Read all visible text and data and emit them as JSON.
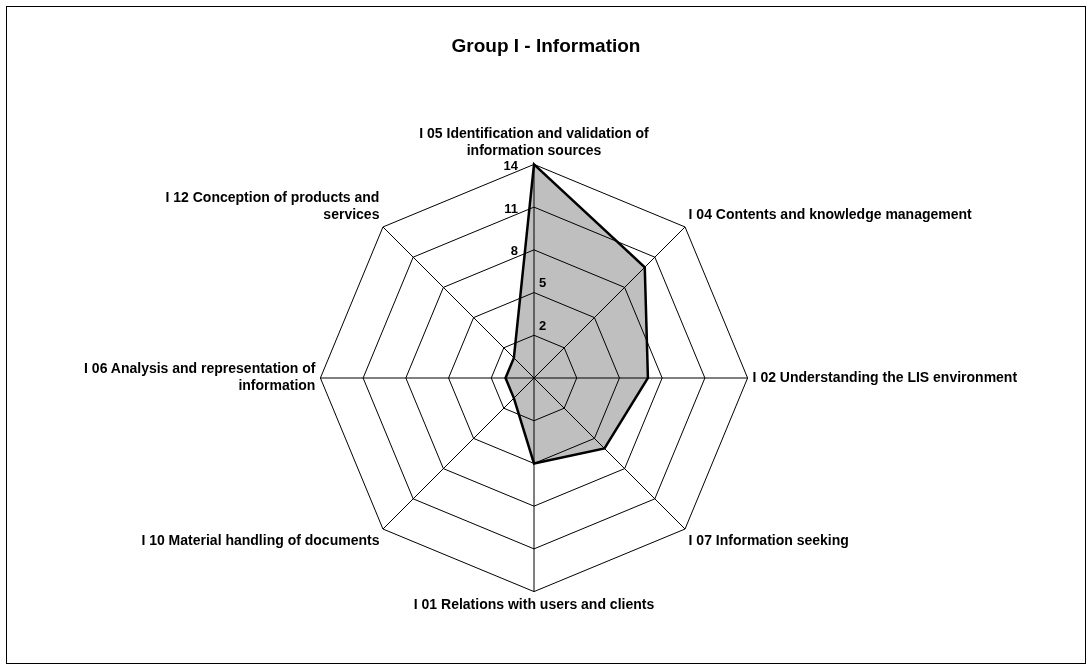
{
  "chart_data": {
    "type": "radar",
    "title": "Group I - Information",
    "categories": [
      "I 05 Identification and validation of information sources",
      "I 04 Contents and knowledge management",
      "I 02 Understanding the LIS environment",
      "I 07 Information seeking",
      "I 01 Relations with users and clients",
      "I 10 Material handling of documents",
      "I 06 Analysis and representation of information",
      "I 12 Conception of products and services"
    ],
    "series": [
      {
        "color": "#000000",
        "values": [
          14,
          10,
          7,
          6,
          5,
          1,
          1,
          1
        ]
      }
    ],
    "ylim": [
      -1,
      14
    ],
    "yticks": [
      2,
      5,
      8,
      11,
      14
    ],
    "grid": true,
    "legend": false,
    "marker": "none"
  }
}
